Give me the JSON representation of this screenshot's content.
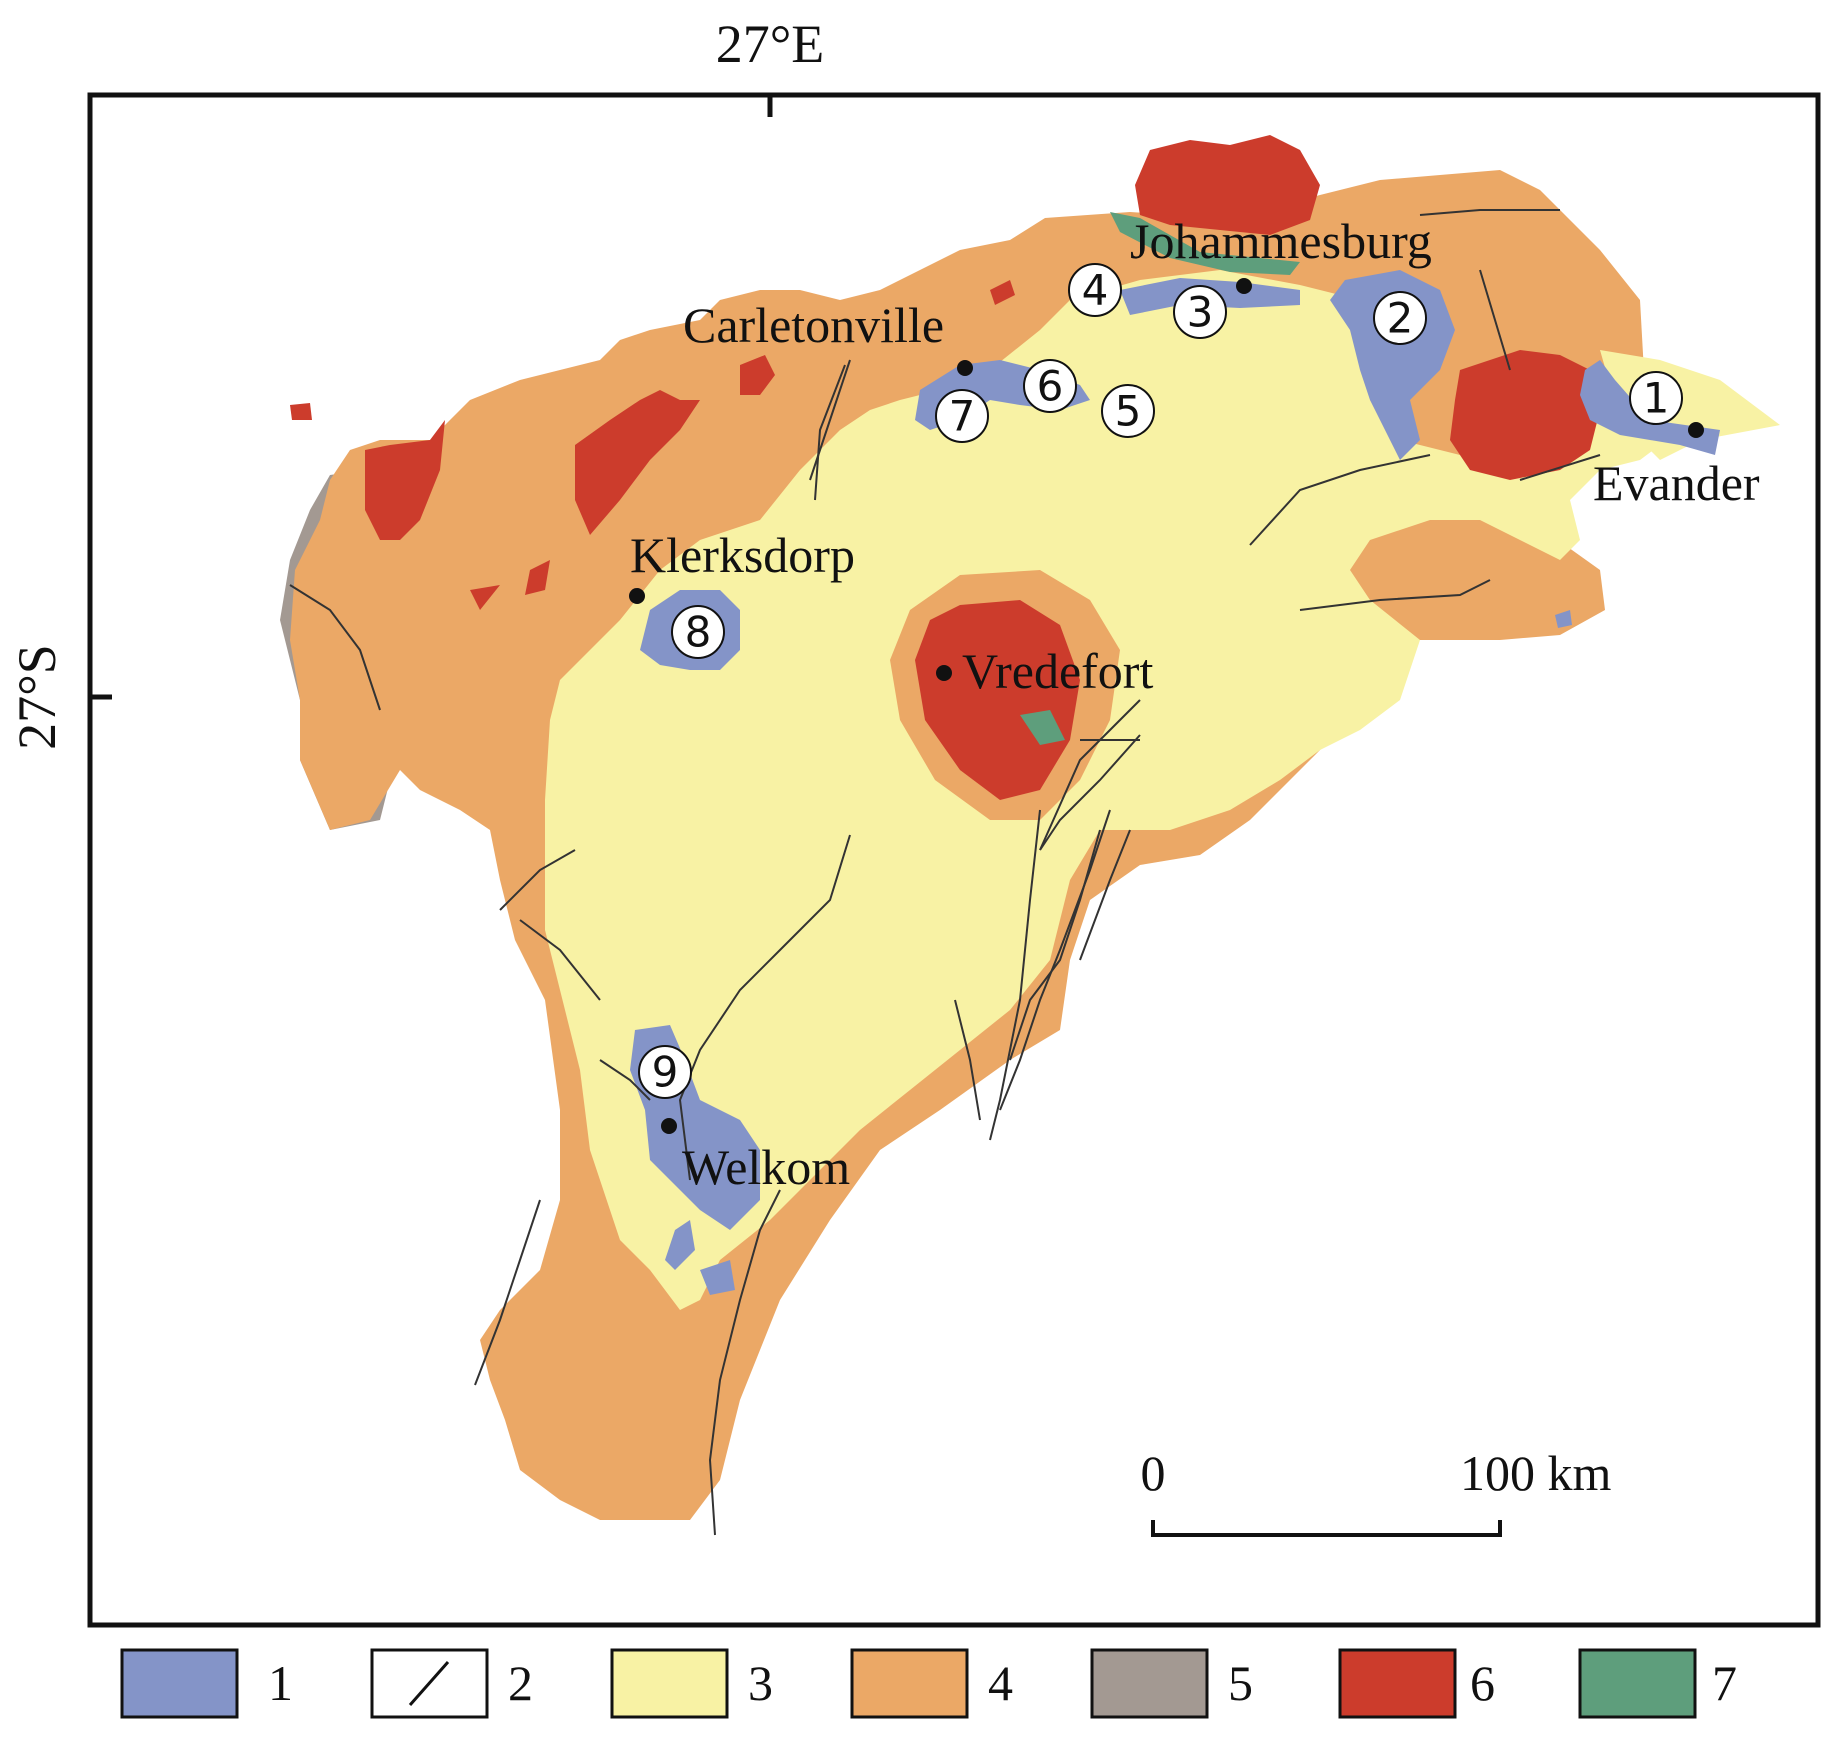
{
  "map": {
    "longitude_label": "27°E",
    "latitude_label": "27°S",
    "colors": {
      "unit1": "#8494c8",
      "unit3": "#f8f2a4",
      "unit4": "#eba866",
      "unit5": "#a39992",
      "unit6": "#cc3c2c",
      "unit7": "#5e9e7c",
      "fault": "#333333"
    },
    "cities": [
      {
        "name": "Johammesburg"
      },
      {
        "name": "Carletonville"
      },
      {
        "name": "Evander"
      },
      {
        "name": "Klerksdorp"
      },
      {
        "name": "Vredefort"
      },
      {
        "name": "Welkom"
      }
    ],
    "goldfields": [
      {
        "number": "1"
      },
      {
        "number": "2"
      },
      {
        "number": "3"
      },
      {
        "number": "4"
      },
      {
        "number": "5"
      },
      {
        "number": "6"
      },
      {
        "number": "7"
      },
      {
        "number": "8"
      },
      {
        "number": "9"
      }
    ],
    "scale_bar": {
      "start_label": "0",
      "end_label": "100 km"
    },
    "legend": [
      {
        "number": "1",
        "icon": "blue-swatch"
      },
      {
        "number": "2",
        "icon": "fault-line-swatch"
      },
      {
        "number": "3",
        "icon": "yellow-swatch"
      },
      {
        "number": "4",
        "icon": "orange-swatch"
      },
      {
        "number": "5",
        "icon": "gray-swatch"
      },
      {
        "number": "6",
        "icon": "red-swatch"
      },
      {
        "number": "7",
        "icon": "green-swatch"
      }
    ]
  }
}
